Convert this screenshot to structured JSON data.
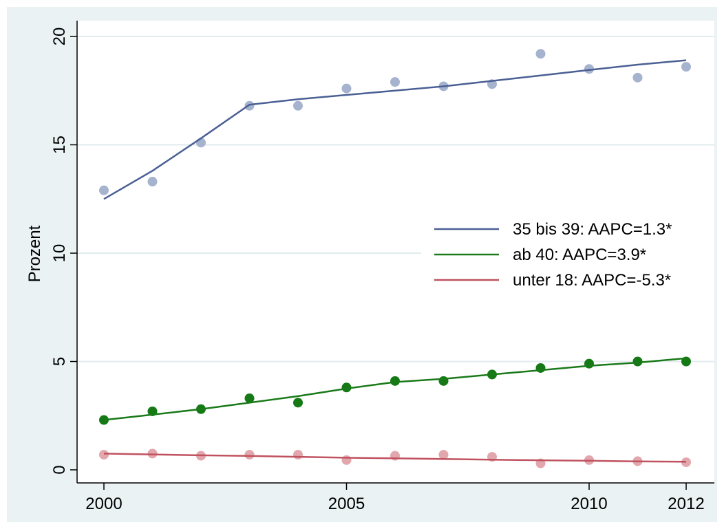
{
  "chart_data": {
    "type": "line",
    "title": "",
    "xlabel": "",
    "ylabel": "Prozent",
    "xlim": [
      2000,
      2012
    ],
    "ylim": [
      0,
      20
    ],
    "x_ticks": [
      2000,
      2005,
      2010,
      2012
    ],
    "y_ticks": [
      0,
      5,
      10,
      15,
      20
    ],
    "grid": true,
    "legend_position": "right-middle",
    "colors": {
      "plot_background": "#ffffff",
      "outer_background": "#eaf2f3",
      "grid": "#e2ebed",
      "axis": "#000000"
    },
    "series": [
      {
        "name": "35 bis 39: AAPC=1.3*",
        "line_color": "#4a5f94",
        "point_color": "#a6b3cf",
        "x": [
          2000,
          2001,
          2002,
          2003,
          2004,
          2005,
          2006,
          2007,
          2008,
          2009,
          2010,
          2011,
          2012
        ],
        "observed": [
          12.9,
          13.3,
          15.1,
          16.8,
          16.8,
          17.6,
          17.9,
          17.7,
          17.8,
          19.2,
          18.5,
          18.1,
          18.6
        ],
        "fitted": [
          12.5,
          13.8,
          15.3,
          16.85,
          17.1,
          17.3,
          17.5,
          17.7,
          17.95,
          18.2,
          18.45,
          18.7,
          18.9
        ]
      },
      {
        "name": "ab 40: AAPC=3.9*",
        "line_color": "#1a7a1a",
        "point_color": "#157a15",
        "x": [
          2000,
          2001,
          2002,
          2003,
          2004,
          2005,
          2006,
          2007,
          2008,
          2009,
          2010,
          2011,
          2012
        ],
        "observed": [
          2.3,
          2.7,
          2.8,
          3.3,
          3.1,
          3.8,
          4.1,
          4.1,
          4.4,
          4.7,
          4.9,
          5.0,
          5.0
        ],
        "fitted": [
          2.3,
          2.55,
          2.8,
          3.1,
          3.4,
          3.75,
          4.05,
          4.2,
          4.4,
          4.6,
          4.8,
          4.95,
          5.15
        ]
      },
      {
        "name": "unter 18: AAPC=-5.3*",
        "line_color": "#c0525f",
        "point_color": "#e2a7ad",
        "x": [
          2000,
          2001,
          2002,
          2003,
          2004,
          2005,
          2006,
          2007,
          2008,
          2009,
          2010,
          2011,
          2012
        ],
        "observed": [
          0.7,
          0.75,
          0.65,
          0.7,
          0.7,
          0.45,
          0.65,
          0.7,
          0.6,
          0.3,
          0.45,
          0.4,
          0.35
        ],
        "fitted": [
          0.75,
          0.71,
          0.67,
          0.64,
          0.6,
          0.56,
          0.53,
          0.5,
          0.47,
          0.44,
          0.42,
          0.39,
          0.37
        ]
      }
    ]
  }
}
